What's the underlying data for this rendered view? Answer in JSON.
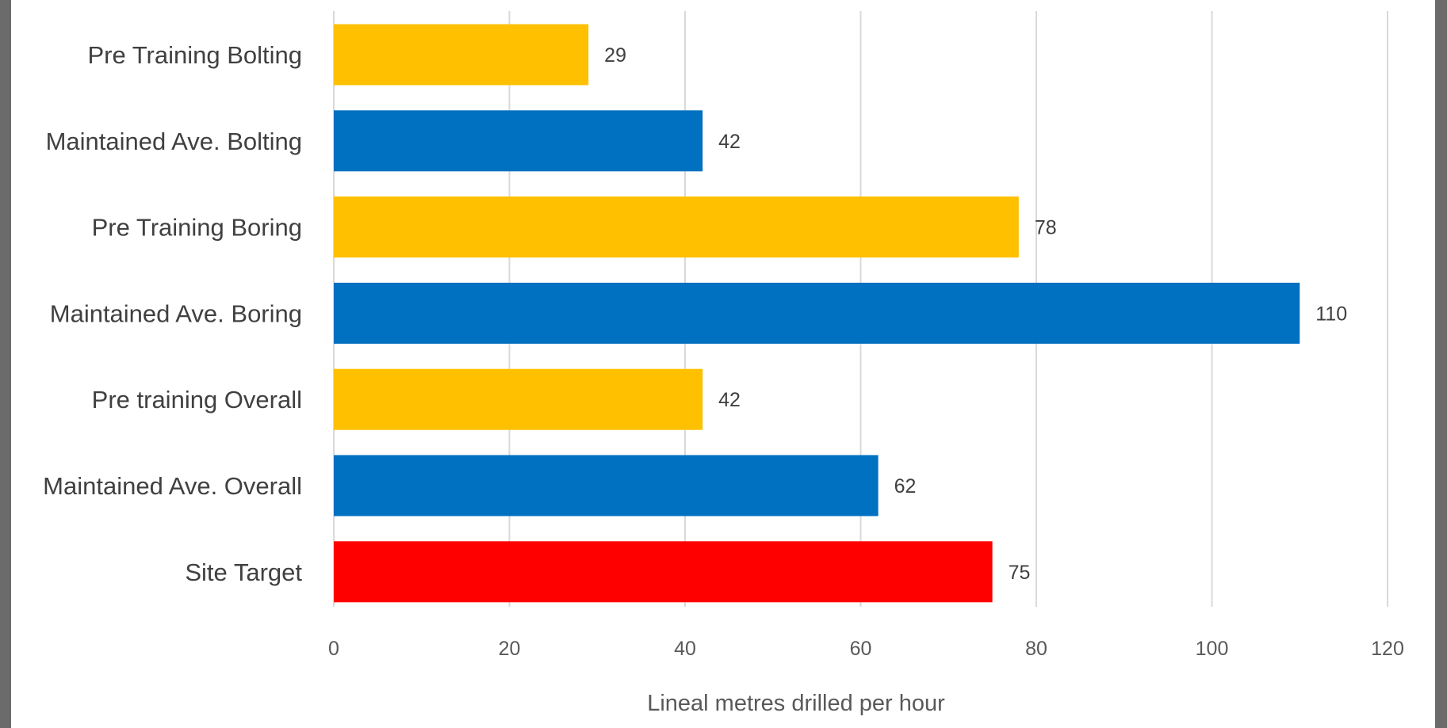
{
  "chart_data": {
    "type": "bar",
    "orientation": "horizontal",
    "categories": [
      "Pre Training Bolting",
      "Maintained Ave.  Bolting",
      "Pre Training Boring",
      "Maintained Ave. Boring",
      "Pre training Overall",
      "Maintained Ave. Overall",
      "Site Target"
    ],
    "values": [
      29,
      42,
      78,
      110,
      42,
      62,
      75
    ],
    "bar_colors": [
      "#FFC000",
      "#0070C0",
      "#FFC000",
      "#0070C0",
      "#FFC000",
      "#0070C0",
      "#FF0000"
    ],
    "xlabel": "Lineal metres drilled per hour",
    "xlim": [
      0,
      120
    ],
    "xticks": [
      0,
      20,
      40,
      60,
      80,
      100,
      120
    ],
    "grid": "vertical",
    "data_labels": true
  }
}
